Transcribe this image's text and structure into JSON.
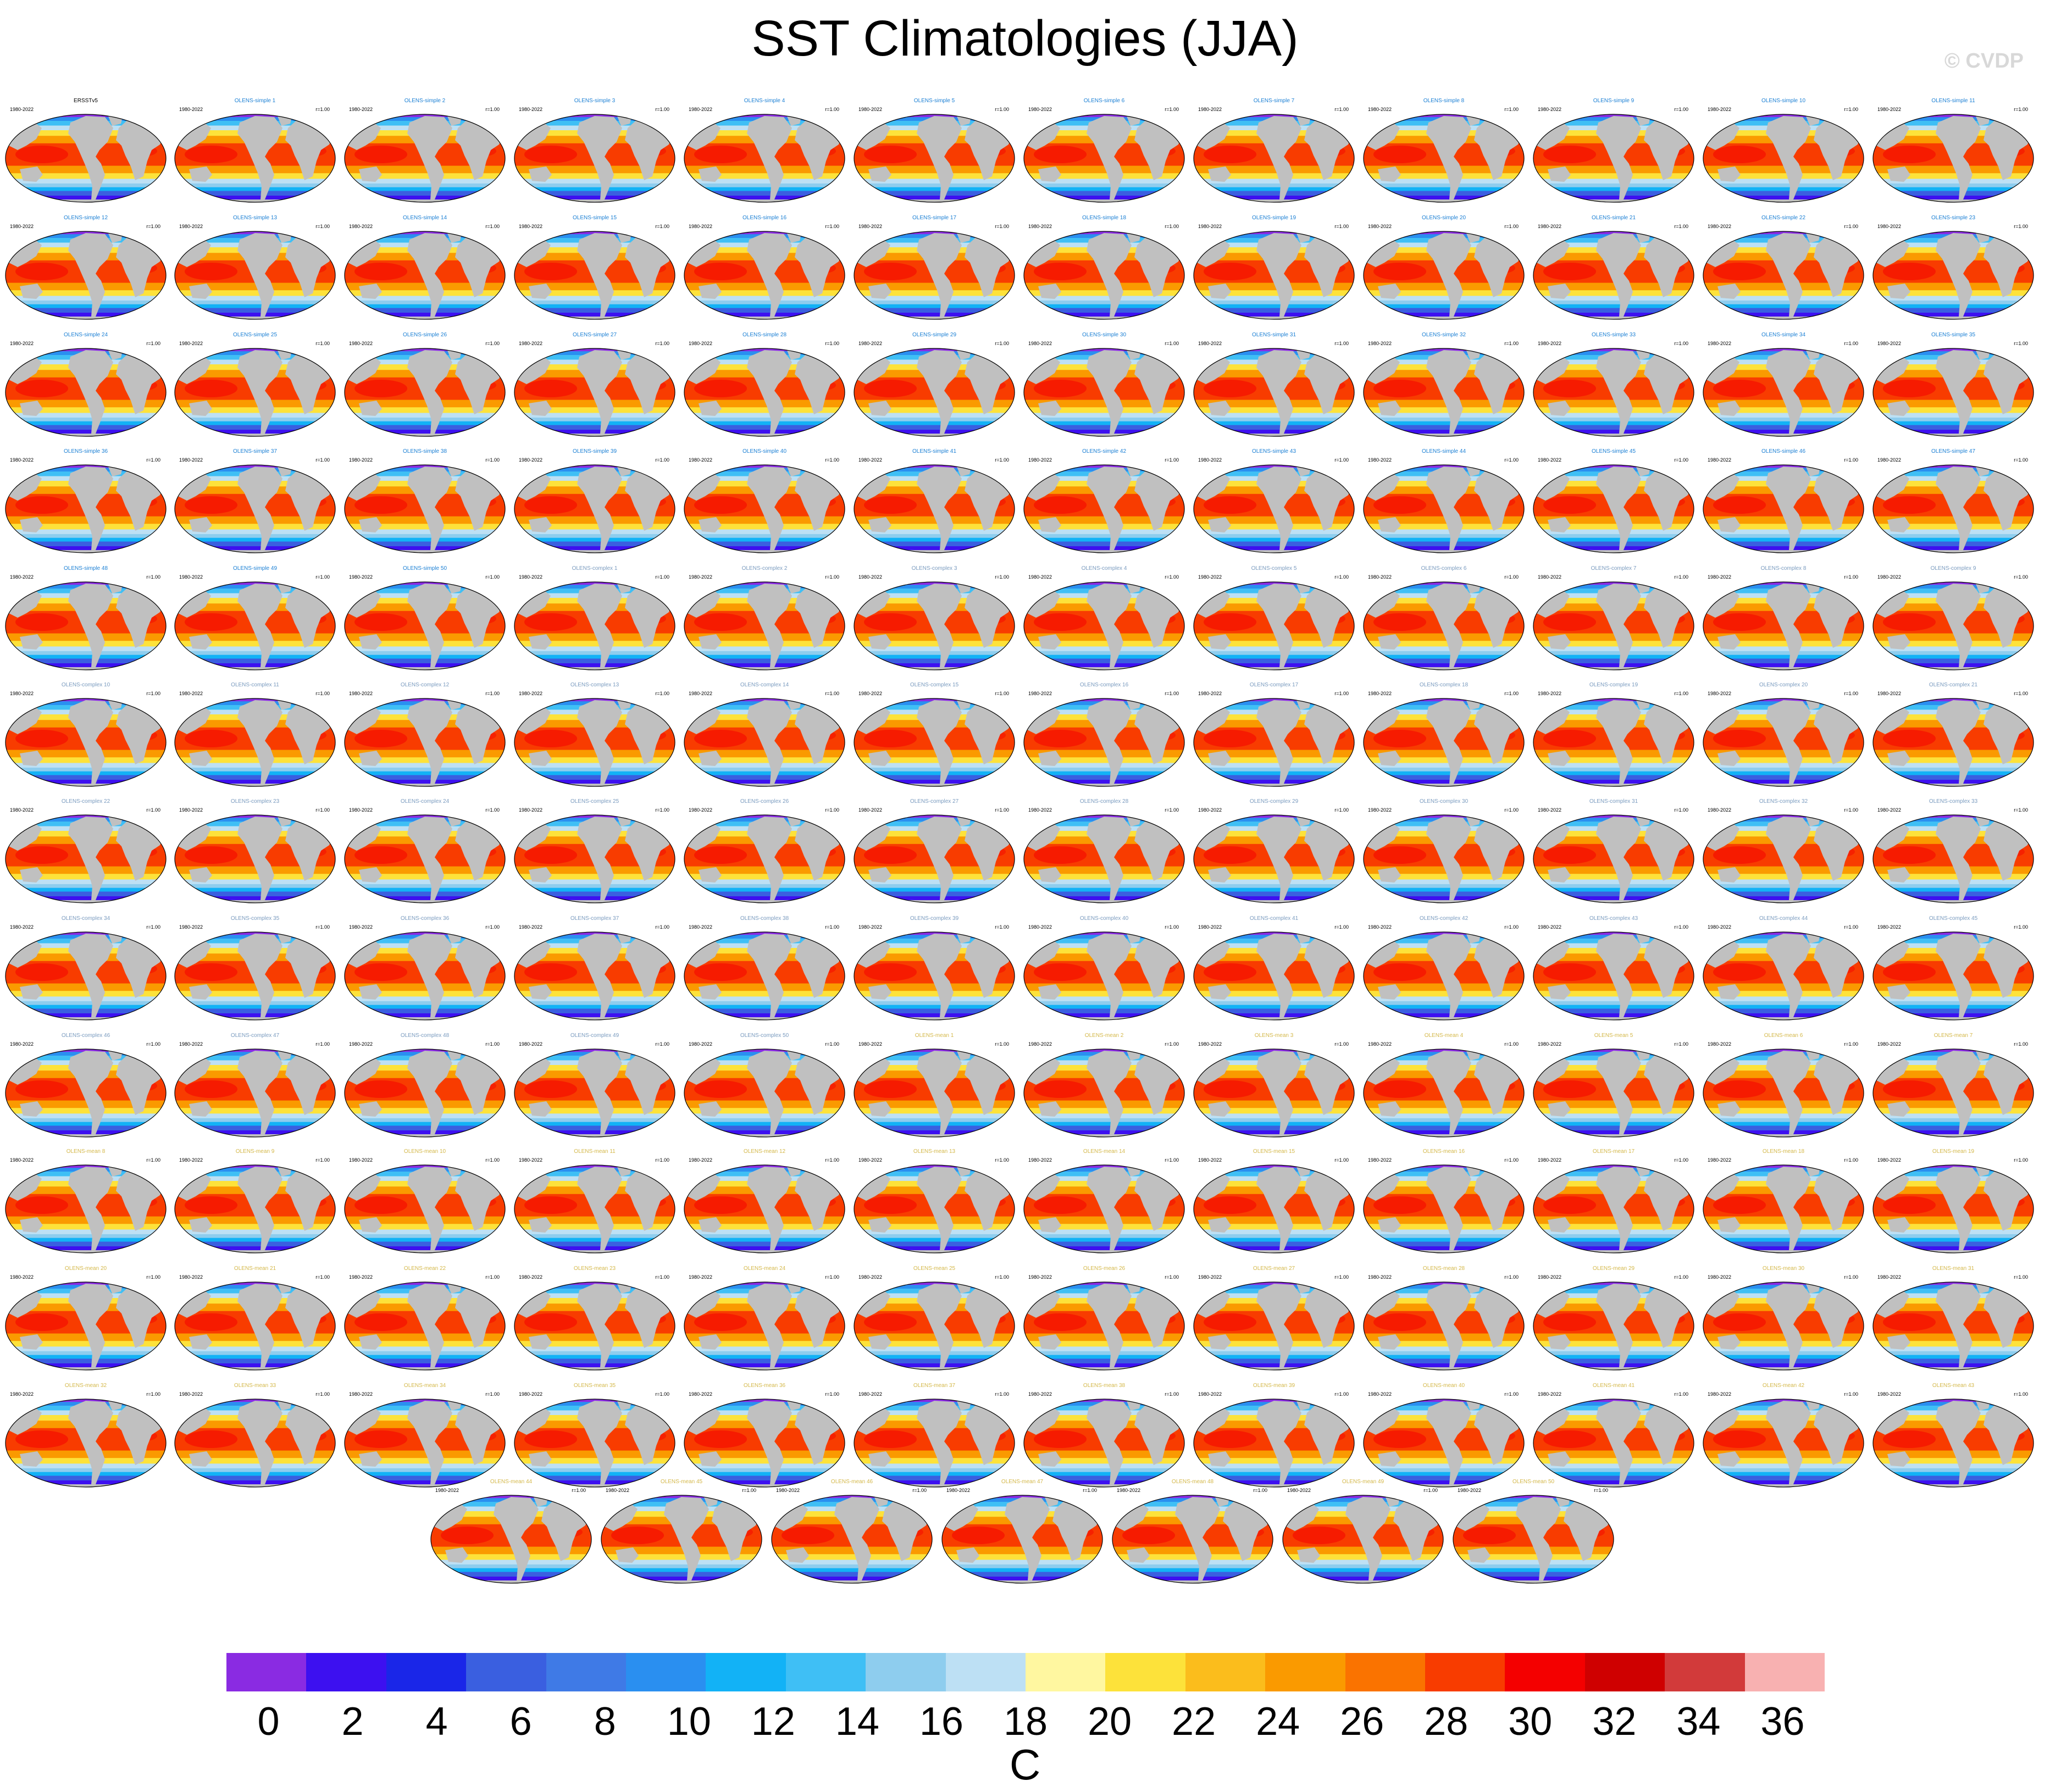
{
  "title": "SST Climatologies (JJA)",
  "watermark": "© CVDP",
  "colors": {
    "ocean_warm": "#ff4000",
    "land": "#c0c0c0",
    "title_obs": "#000000",
    "title_simple": "#1a7fd4",
    "title_complex": "#7a9bbf",
    "title_mean": "#d4b84a"
  },
  "chart_data": {
    "type": "heatmap",
    "title": "SST Climatologies (JJA)",
    "variable": "SST",
    "season": "JJA",
    "map_projection": "robinson",
    "panels": [
      {
        "name": "ERSSTv5",
        "years": "1980-2022",
        "r": ""
      },
      {
        "name": "OLENS-simple 1",
        "years": "1980-2022",
        "r": "r=1.00"
      },
      {
        "name": "OLENS-simple 2",
        "years": "1980-2022",
        "r": "r=1.00"
      },
      {
        "name": "OLENS-simple 3",
        "years": "1980-2022",
        "r": "r=1.00"
      },
      {
        "name": "OLENS-simple 4",
        "years": "1980-2022",
        "r": "r=1.00"
      },
      {
        "name": "OLENS-simple 5",
        "years": "1980-2022",
        "r": "r=1.00"
      },
      {
        "name": "OLENS-simple 6",
        "years": "1980-2022",
        "r": "r=1.00"
      },
      {
        "name": "OLENS-simple 7",
        "years": "1980-2022",
        "r": "r=1.00"
      },
      {
        "name": "OLENS-simple 8",
        "years": "1980-2022",
        "r": "r=1.00"
      },
      {
        "name": "OLENS-simple 9",
        "years": "1980-2022",
        "r": "r=1.00"
      },
      {
        "name": "OLENS-simple 10",
        "years": "1980-2022",
        "r": "r=1.00"
      },
      {
        "name": "OLENS-simple 11",
        "years": "1980-2022",
        "r": "r=1.00"
      },
      {
        "name": "OLENS-simple 12",
        "years": "1980-2022",
        "r": "r=1.00"
      },
      {
        "name": "OLENS-simple 13",
        "years": "1980-2022",
        "r": "r=1.00"
      },
      {
        "name": "OLENS-simple 14",
        "years": "1980-2022",
        "r": "r=1.00"
      },
      {
        "name": "OLENS-simple 15",
        "years": "1980-2022",
        "r": "r=1.00"
      },
      {
        "name": "OLENS-simple 16",
        "years": "1980-2022",
        "r": "r=1.00"
      },
      {
        "name": "OLENS-simple 17",
        "years": "1980-2022",
        "r": "r=1.00"
      },
      {
        "name": "OLENS-simple 18",
        "years": "1980-2022",
        "r": "r=1.00"
      },
      {
        "name": "OLENS-simple 19",
        "years": "1980-2022",
        "r": "r=1.00"
      },
      {
        "name": "OLENS-simple 20",
        "years": "1980-2022",
        "r": "r=1.00"
      },
      {
        "name": "OLENS-simple 21",
        "years": "1980-2022",
        "r": "r=1.00"
      },
      {
        "name": "OLENS-simple 22",
        "years": "1980-2022",
        "r": "r=1.00"
      },
      {
        "name": "OLENS-simple 23",
        "years": "1980-2022",
        "r": "r=1.00"
      },
      {
        "name": "OLENS-simple 24",
        "years": "1980-2022",
        "r": "r=1.00"
      },
      {
        "name": "OLENS-simple 25",
        "years": "1980-2022",
        "r": "r=1.00"
      },
      {
        "name": "OLENS-simple 26",
        "years": "1980-2022",
        "r": "r=1.00"
      },
      {
        "name": "OLENS-simple 27",
        "years": "1980-2022",
        "r": "r=1.00"
      },
      {
        "name": "OLENS-simple 28",
        "years": "1980-2022",
        "r": "r=1.00"
      },
      {
        "name": "OLENS-simple 29",
        "years": "1980-2022",
        "r": "r=1.00"
      },
      {
        "name": "OLENS-simple 30",
        "years": "1980-2022",
        "r": "r=1.00"
      },
      {
        "name": "OLENS-simple 31",
        "years": "1980-2022",
        "r": "r=1.00"
      },
      {
        "name": "OLENS-simple 32",
        "years": "1980-2022",
        "r": "r=1.00"
      },
      {
        "name": "OLENS-simple 33",
        "years": "1980-2022",
        "r": "r=1.00"
      },
      {
        "name": "OLENS-simple 34",
        "years": "1980-2022",
        "r": "r=1.00"
      },
      {
        "name": "OLENS-simple 35",
        "years": "1980-2022",
        "r": "r=1.00"
      },
      {
        "name": "OLENS-simple 36",
        "years": "1980-2022",
        "r": "r=1.00"
      },
      {
        "name": "OLENS-simple 37",
        "years": "1980-2022",
        "r": "r=1.00"
      },
      {
        "name": "OLENS-simple 38",
        "years": "1980-2022",
        "r": "r=1.00"
      },
      {
        "name": "OLENS-simple 39",
        "years": "1980-2022",
        "r": "r=1.00"
      },
      {
        "name": "OLENS-simple 40",
        "years": "1980-2022",
        "r": "r=1.00"
      },
      {
        "name": "OLENS-simple 41",
        "years": "1980-2022",
        "r": "r=1.00"
      },
      {
        "name": "OLENS-simple 42",
        "years": "1980-2022",
        "r": "r=1.00"
      },
      {
        "name": "OLENS-simple 43",
        "years": "1980-2022",
        "r": "r=1.00"
      },
      {
        "name": "OLENS-simple 44",
        "years": "1980-2022",
        "r": "r=1.00"
      },
      {
        "name": "OLENS-simple 45",
        "years": "1980-2022",
        "r": "r=1.00"
      },
      {
        "name": "OLENS-simple 46",
        "years": "1980-2022",
        "r": "r=1.00"
      },
      {
        "name": "OLENS-simple 47",
        "years": "1980-2022",
        "r": "r=1.00"
      },
      {
        "name": "OLENS-simple 48",
        "years": "1980-2022",
        "r": "r=1.00"
      },
      {
        "name": "OLENS-simple 49",
        "years": "1980-2022",
        "r": "r=1.00"
      },
      {
        "name": "OLENS-simple 50",
        "years": "1980-2022",
        "r": "r=1.00"
      },
      {
        "name": "OLENS-complex 1",
        "years": "1980-2022",
        "r": "r=1.00"
      },
      {
        "name": "OLENS-complex 2",
        "years": "1980-2022",
        "r": "r=1.00"
      },
      {
        "name": "OLENS-complex 3",
        "years": "1980-2022",
        "r": "r=1.00"
      },
      {
        "name": "OLENS-complex 4",
        "years": "1980-2022",
        "r": "r=1.00"
      },
      {
        "name": "OLENS-complex 5",
        "years": "1980-2022",
        "r": "r=1.00"
      },
      {
        "name": "OLENS-complex 6",
        "years": "1980-2022",
        "r": "r=1.00"
      },
      {
        "name": "OLENS-complex 7",
        "years": "1980-2022",
        "r": "r=1.00"
      },
      {
        "name": "OLENS-complex 8",
        "years": "1980-2022",
        "r": "r=1.00"
      },
      {
        "name": "OLENS-complex 9",
        "years": "1980-2022",
        "r": "r=1.00"
      },
      {
        "name": "OLENS-complex 10",
        "years": "1980-2022",
        "r": "r=1.00"
      },
      {
        "name": "OLENS-complex 11",
        "years": "1980-2022",
        "r": "r=1.00"
      },
      {
        "name": "OLENS-complex 12",
        "years": "1980-2022",
        "r": "r=1.00"
      },
      {
        "name": "OLENS-complex 13",
        "years": "1980-2022",
        "r": "r=1.00"
      },
      {
        "name": "OLENS-complex 14",
        "years": "1980-2022",
        "r": "r=1.00"
      },
      {
        "name": "OLENS-complex 15",
        "years": "1980-2022",
        "r": "r=1.00"
      },
      {
        "name": "OLENS-complex 16",
        "years": "1980-2022",
        "r": "r=1.00"
      },
      {
        "name": "OLENS-complex 17",
        "years": "1980-2022",
        "r": "r=1.00"
      },
      {
        "name": "OLENS-complex 18",
        "years": "1980-2022",
        "r": "r=1.00"
      },
      {
        "name": "OLENS-complex 19",
        "years": "1980-2022",
        "r": "r=1.00"
      },
      {
        "name": "OLENS-complex 20",
        "years": "1980-2022",
        "r": "r=1.00"
      },
      {
        "name": "OLENS-complex 21",
        "years": "1980-2022",
        "r": "r=1.00"
      },
      {
        "name": "OLENS-complex 22",
        "years": "1980-2022",
        "r": "r=1.00"
      },
      {
        "name": "OLENS-complex 23",
        "years": "1980-2022",
        "r": "r=1.00"
      },
      {
        "name": "OLENS-complex 24",
        "years": "1980-2022",
        "r": "r=1.00"
      },
      {
        "name": "OLENS-complex 25",
        "years": "1980-2022",
        "r": "r=1.00"
      },
      {
        "name": "OLENS-complex 26",
        "years": "1980-2022",
        "r": "r=1.00"
      },
      {
        "name": "OLENS-complex 27",
        "years": "1980-2022",
        "r": "r=1.00"
      },
      {
        "name": "OLENS-complex 28",
        "years": "1980-2022",
        "r": "r=1.00"
      },
      {
        "name": "OLENS-complex 29",
        "years": "1980-2022",
        "r": "r=1.00"
      },
      {
        "name": "OLENS-complex 30",
        "years": "1980-2022",
        "r": "r=1.00"
      },
      {
        "name": "OLENS-complex 31",
        "years": "1980-2022",
        "r": "r=1.00"
      },
      {
        "name": "OLENS-complex 32",
        "years": "1980-2022",
        "r": "r=1.00"
      },
      {
        "name": "OLENS-complex 33",
        "years": "1980-2022",
        "r": "r=1.00"
      },
      {
        "name": "OLENS-complex 34",
        "years": "1980-2022",
        "r": "r=1.00"
      },
      {
        "name": "OLENS-complex 35",
        "years": "1980-2022",
        "r": "r=1.00"
      },
      {
        "name": "OLENS-complex 36",
        "years": "1980-2022",
        "r": "r=1.00"
      },
      {
        "name": "OLENS-complex 37",
        "years": "1980-2022",
        "r": "r=1.00"
      },
      {
        "name": "OLENS-complex 38",
        "years": "1980-2022",
        "r": "r=1.00"
      },
      {
        "name": "OLENS-complex 39",
        "years": "1980-2022",
        "r": "r=1.00"
      },
      {
        "name": "OLENS-complex 40",
        "years": "1980-2022",
        "r": "r=1.00"
      },
      {
        "name": "OLENS-complex 41",
        "years": "1980-2022",
        "r": "r=1.00"
      },
      {
        "name": "OLENS-complex 42",
        "years": "1980-2022",
        "r": "r=1.00"
      },
      {
        "name": "OLENS-complex 43",
        "years": "1980-2022",
        "r": "r=1.00"
      },
      {
        "name": "OLENS-complex 44",
        "years": "1980-2022",
        "r": "r=1.00"
      },
      {
        "name": "OLENS-complex 45",
        "years": "1980-2022",
        "r": "r=1.00"
      },
      {
        "name": "OLENS-complex 46",
        "years": "1980-2022",
        "r": "r=1.00"
      },
      {
        "name": "OLENS-complex 47",
        "years": "1980-2022",
        "r": "r=1.00"
      },
      {
        "name": "OLENS-complex 48",
        "years": "1980-2022",
        "r": "r=1.00"
      },
      {
        "name": "OLENS-complex 49",
        "years": "1980-2022",
        "r": "r=1.00"
      },
      {
        "name": "OLENS-complex 50",
        "years": "1980-2022",
        "r": "r=1.00"
      },
      {
        "name": "OLENS-mean 1",
        "years": "1980-2022",
        "r": "r=1.00"
      },
      {
        "name": "OLENS-mean 2",
        "years": "1980-2022",
        "r": "r=1.00"
      },
      {
        "name": "OLENS-mean 3",
        "years": "1980-2022",
        "r": "r=1.00"
      },
      {
        "name": "OLENS-mean 4",
        "years": "1980-2022",
        "r": "r=1.00"
      },
      {
        "name": "OLENS-mean 5",
        "years": "1980-2022",
        "r": "r=1.00"
      },
      {
        "name": "OLENS-mean 6",
        "years": "1980-2022",
        "r": "r=1.00"
      },
      {
        "name": "OLENS-mean 7",
        "years": "1980-2022",
        "r": "r=1.00"
      },
      {
        "name": "OLENS-mean 8",
        "years": "1980-2022",
        "r": "r=1.00"
      },
      {
        "name": "OLENS-mean 9",
        "years": "1980-2022",
        "r": "r=1.00"
      },
      {
        "name": "OLENS-mean 10",
        "years": "1980-2022",
        "r": "r=1.00"
      },
      {
        "name": "OLENS-mean 11",
        "years": "1980-2022",
        "r": "r=1.00"
      },
      {
        "name": "OLENS-mean 12",
        "years": "1980-2022",
        "r": "r=1.00"
      },
      {
        "name": "OLENS-mean 13",
        "years": "1980-2022",
        "r": "r=1.00"
      },
      {
        "name": "OLENS-mean 14",
        "years": "1980-2022",
        "r": "r=1.00"
      },
      {
        "name": "OLENS-mean 15",
        "years": "1980-2022",
        "r": "r=1.00"
      },
      {
        "name": "OLENS-mean 16",
        "years": "1980-2022",
        "r": "r=1.00"
      },
      {
        "name": "OLENS-mean 17",
        "years": "1980-2022",
        "r": "r=1.00"
      },
      {
        "name": "OLENS-mean 18",
        "years": "1980-2022",
        "r": "r=1.00"
      },
      {
        "name": "OLENS-mean 19",
        "years": "1980-2022",
        "r": "r=1.00"
      },
      {
        "name": "OLENS-mean 20",
        "years": "1980-2022",
        "r": "r=1.00"
      },
      {
        "name": "OLENS-mean 21",
        "years": "1980-2022",
        "r": "r=1.00"
      },
      {
        "name": "OLENS-mean 22",
        "years": "1980-2022",
        "r": "r=1.00"
      },
      {
        "name": "OLENS-mean 23",
        "years": "1980-2022",
        "r": "r=1.00"
      },
      {
        "name": "OLENS-mean 24",
        "years": "1980-2022",
        "r": "r=1.00"
      },
      {
        "name": "OLENS-mean 25",
        "years": "1980-2022",
        "r": "r=1.00"
      },
      {
        "name": "OLENS-mean 26",
        "years": "1980-2022",
        "r": "r=1.00"
      },
      {
        "name": "OLENS-mean 27",
        "years": "1980-2022",
        "r": "r=1.00"
      },
      {
        "name": "OLENS-mean 28",
        "years": "1980-2022",
        "r": "r=1.00"
      },
      {
        "name": "OLENS-mean 29",
        "years": "1980-2022",
        "r": "r=1.00"
      },
      {
        "name": "OLENS-mean 30",
        "years": "1980-2022",
        "r": "r=1.00"
      },
      {
        "name": "OLENS-mean 31",
        "years": "1980-2022",
        "r": "r=1.00"
      },
      {
        "name": "OLENS-mean 32",
        "years": "1980-2022",
        "r": "r=1.00"
      },
      {
        "name": "OLENS-mean 33",
        "years": "1980-2022",
        "r": "r=1.00"
      },
      {
        "name": "OLENS-mean 34",
        "years": "1980-2022",
        "r": "r=1.00"
      },
      {
        "name": "OLENS-mean 35",
        "years": "1980-2022",
        "r": "r=1.00"
      },
      {
        "name": "OLENS-mean 36",
        "years": "1980-2022",
        "r": "r=1.00"
      },
      {
        "name": "OLENS-mean 37",
        "years": "1980-2022",
        "r": "r=1.00"
      },
      {
        "name": "OLENS-mean 38",
        "years": "1980-2022",
        "r": "r=1.00"
      },
      {
        "name": "OLENS-mean 39",
        "years": "1980-2022",
        "r": "r=1.00"
      },
      {
        "name": "OLENS-mean 40",
        "years": "1980-2022",
        "r": "r=1.00"
      },
      {
        "name": "OLENS-mean 41",
        "years": "1980-2022",
        "r": "r=1.00"
      },
      {
        "name": "OLENS-mean 42",
        "years": "1980-2022",
        "r": "r=1.00"
      },
      {
        "name": "OLENS-mean 43",
        "years": "1980-2022",
        "r": "r=1.00"
      },
      {
        "name": "OLENS-mean 44",
        "years": "1980-2022",
        "r": "r=1.00"
      },
      {
        "name": "OLENS-mean 45",
        "years": "1980-2022",
        "r": "r=1.00"
      },
      {
        "name": "OLENS-mean 46",
        "years": "1980-2022",
        "r": "r=1.00"
      },
      {
        "name": "OLENS-mean 47",
        "years": "1980-2022",
        "r": "r=1.00"
      },
      {
        "name": "OLENS-mean 48",
        "years": "1980-2022",
        "r": "r=1.00"
      },
      {
        "name": "OLENS-mean 49",
        "years": "1980-2022",
        "r": "r=1.00"
      },
      {
        "name": "OLENS-mean 50",
        "years": "1980-2022",
        "r": "r=1.00"
      }
    ],
    "colorbar": {
      "units": "C",
      "ticks": [
        0,
        2,
        4,
        6,
        8,
        10,
        12,
        14,
        16,
        18,
        20,
        22,
        24,
        26,
        28,
        30,
        32,
        34,
        36
      ],
      "colors": [
        "#8a2be2",
        "#3d10f0",
        "#1a26e8",
        "#3a5fe0",
        "#3f7ae6",
        "#2a8ff0",
        "#12b2f6",
        "#3fbff5",
        "#8ecdee",
        "#bde0f4",
        "#fff7a0",
        "#fde23a",
        "#fbbd1c",
        "#fa9a00",
        "#fa7300",
        "#f83c00",
        "#f40000",
        "#cf0000",
        "#d23a3a",
        "#f8b1b1"
      ],
      "range": [
        -1,
        37
      ]
    }
  }
}
